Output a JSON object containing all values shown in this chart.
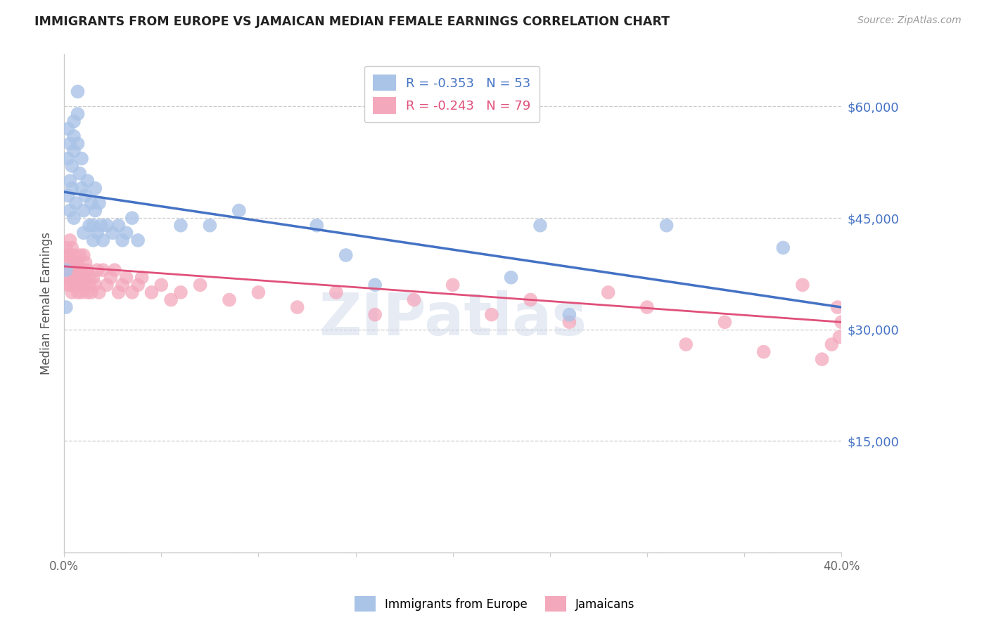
{
  "title": "IMMIGRANTS FROM EUROPE VS JAMAICAN MEDIAN FEMALE EARNINGS CORRELATION CHART",
  "source": "Source: ZipAtlas.com",
  "ylabel": "Median Female Earnings",
  "xlim": [
    0.0,
    0.4
  ],
  "ylim": [
    0,
    67000
  ],
  "yticks": [
    0,
    15000,
    30000,
    45000,
    60000
  ],
  "ytick_labels": [
    "",
    "$15,000",
    "$30,000",
    "$45,000",
    "$60,000"
  ],
  "xticks": [
    0.0,
    0.05,
    0.1,
    0.15,
    0.2,
    0.25,
    0.3,
    0.35,
    0.4
  ],
  "xtick_labels": [
    "0.0%",
    "",
    "",
    "",
    "",
    "",
    "",
    "",
    "40.0%"
  ],
  "blue_R": -0.353,
  "blue_N": 53,
  "pink_R": -0.243,
  "pink_N": 79,
  "blue_color": "#aac4e8",
  "pink_color": "#f4a8bc",
  "blue_line_color": "#4472c4",
  "pink_line_color": "#e0507a",
  "legend_label_blue": "Immigrants from Europe",
  "legend_label_pink": "Jamaicans",
  "blue_scatter_x": [
    0.001,
    0.001,
    0.002,
    0.002,
    0.002,
    0.003,
    0.003,
    0.003,
    0.004,
    0.004,
    0.005,
    0.005,
    0.005,
    0.005,
    0.006,
    0.007,
    0.007,
    0.007,
    0.008,
    0.009,
    0.009,
    0.01,
    0.01,
    0.011,
    0.012,
    0.013,
    0.014,
    0.015,
    0.015,
    0.016,
    0.016,
    0.017,
    0.018,
    0.019,
    0.02,
    0.022,
    0.025,
    0.028,
    0.03,
    0.032,
    0.035,
    0.038,
    0.06,
    0.075,
    0.09,
    0.13,
    0.145,
    0.16,
    0.23,
    0.245,
    0.26,
    0.31,
    0.37
  ],
  "blue_scatter_y": [
    38000,
    33000,
    48000,
    53000,
    57000,
    55000,
    50000,
    46000,
    52000,
    49000,
    58000,
    56000,
    54000,
    45000,
    47000,
    62000,
    59000,
    55000,
    51000,
    53000,
    49000,
    46000,
    43000,
    48000,
    50000,
    44000,
    47000,
    42000,
    44000,
    49000,
    46000,
    43000,
    47000,
    44000,
    42000,
    44000,
    43000,
    44000,
    42000,
    43000,
    45000,
    42000,
    44000,
    44000,
    46000,
    44000,
    40000,
    36000,
    37000,
    44000,
    32000,
    44000,
    41000
  ],
  "pink_scatter_x": [
    0.001,
    0.001,
    0.002,
    0.002,
    0.002,
    0.002,
    0.003,
    0.003,
    0.003,
    0.003,
    0.004,
    0.004,
    0.004,
    0.004,
    0.005,
    0.005,
    0.005,
    0.005,
    0.006,
    0.006,
    0.006,
    0.007,
    0.007,
    0.007,
    0.008,
    0.008,
    0.008,
    0.009,
    0.009,
    0.01,
    0.01,
    0.01,
    0.011,
    0.011,
    0.012,
    0.012,
    0.013,
    0.013,
    0.014,
    0.015,
    0.016,
    0.017,
    0.018,
    0.02,
    0.022,
    0.024,
    0.026,
    0.028,
    0.03,
    0.032,
    0.035,
    0.038,
    0.04,
    0.045,
    0.05,
    0.055,
    0.06,
    0.07,
    0.085,
    0.1,
    0.12,
    0.14,
    0.16,
    0.18,
    0.2,
    0.22,
    0.24,
    0.26,
    0.28,
    0.3,
    0.32,
    0.34,
    0.36,
    0.38,
    0.39,
    0.395,
    0.398,
    0.399,
    0.4
  ],
  "pink_scatter_y": [
    37000,
    41000,
    38000,
    40000,
    36000,
    39000,
    42000,
    38000,
    36000,
    40000,
    39000,
    37000,
    41000,
    35000,
    38000,
    36000,
    40000,
    37000,
    39000,
    36000,
    38000,
    37000,
    39000,
    35000,
    38000,
    36000,
    40000,
    37000,
    35000,
    38000,
    36000,
    40000,
    37000,
    39000,
    35000,
    38000,
    36000,
    37000,
    35000,
    37000,
    36000,
    38000,
    35000,
    38000,
    36000,
    37000,
    38000,
    35000,
    36000,
    37000,
    35000,
    36000,
    37000,
    35000,
    36000,
    34000,
    35000,
    36000,
    34000,
    35000,
    33000,
    35000,
    32000,
    34000,
    36000,
    32000,
    34000,
    31000,
    35000,
    33000,
    28000,
    31000,
    27000,
    36000,
    26000,
    28000,
    33000,
    29000,
    31000
  ]
}
